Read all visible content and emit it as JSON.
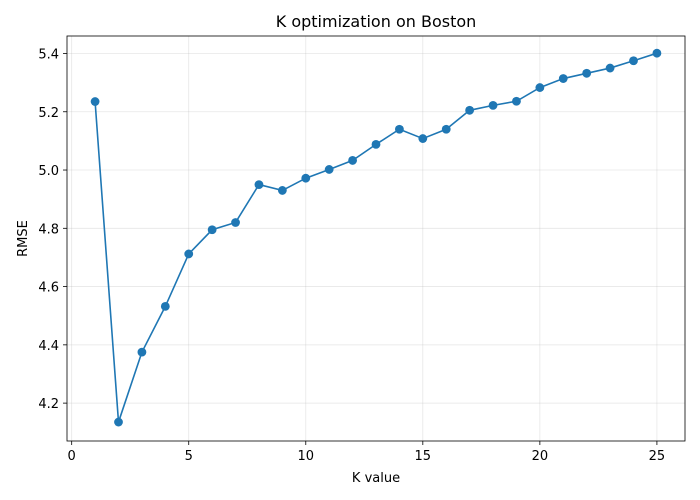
{
  "chart_data": {
    "type": "line",
    "title": "K optimization on Boston",
    "xlabel": "K value",
    "ylabel": "RMSE",
    "xlim": [
      -0.2,
      26.2
    ],
    "ylim": [
      4.07,
      5.46
    ],
    "xticks": [
      0,
      5,
      10,
      15,
      20,
      25
    ],
    "yticks": [
      4.2,
      4.4,
      4.6,
      4.8,
      5.0,
      5.2,
      5.4
    ],
    "xtick_labels": [
      "0",
      "5",
      "10",
      "15",
      "20",
      "25"
    ],
    "ytick_labels": [
      "4.2",
      "4.4",
      "4.6",
      "4.8",
      "5.0",
      "5.2",
      "5.4"
    ],
    "grid": true,
    "color": "#1f77b4",
    "series": [
      {
        "x": [
          1,
          2,
          3,
          4,
          5,
          6,
          7,
          8,
          9,
          10,
          11,
          12,
          13,
          14,
          15,
          16,
          17,
          18,
          19,
          20,
          21,
          22,
          23,
          24,
          25
        ],
        "values": [
          5.235,
          4.135,
          4.375,
          4.532,
          4.712,
          4.795,
          4.82,
          4.95,
          4.93,
          4.972,
          5.002,
          5.033,
          5.088,
          5.14,
          5.108,
          5.14,
          5.205,
          5.222,
          5.236,
          5.283,
          5.314,
          5.332,
          5.35,
          5.375,
          5.401
        ]
      }
    ]
  }
}
